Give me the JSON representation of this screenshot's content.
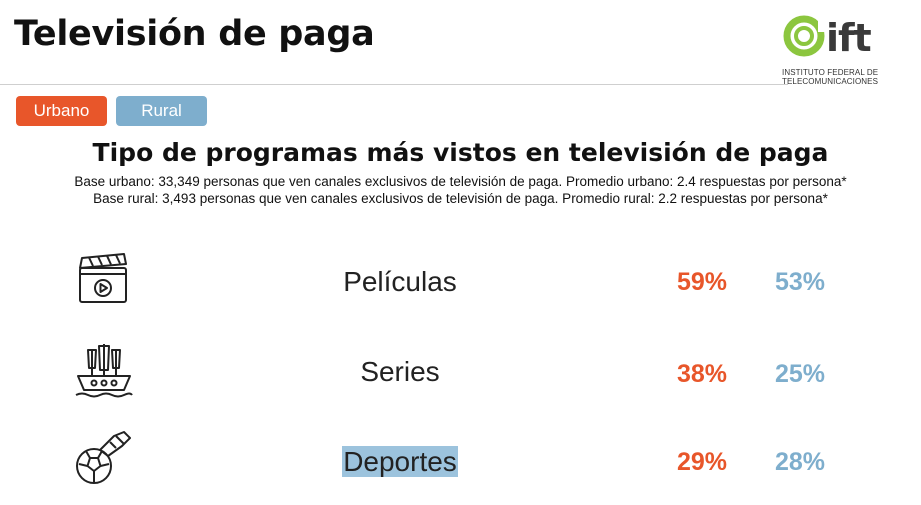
{
  "header": {
    "title": "Televisión de paga",
    "logo_text": "ift",
    "logo_subtitle_line1": "INSTITUTO FEDERAL DE",
    "logo_subtitle_line2": "TELECOMUNICACIONES"
  },
  "filters": {
    "urbano": "Urbano",
    "rural": "Rural"
  },
  "colors": {
    "urbano": "#e8562a",
    "rural": "#7eaecd",
    "logo_green": "#8cc63f"
  },
  "main": {
    "subtitle": "Tipo de programas más vistos en televisión de paga",
    "base_urbano": "Base urbano: 33,349 personas que ven canales exclusivos de televisión de paga. Promedio urbano: 2.4 respuestas por persona*",
    "base_rural": "Base rural: 3,493 personas que ven canales exclusivos de televisión de paga. Promedio rural: 2.2 respuestas por persona*",
    "rows": [
      {
        "icon": "film-clapper-icon",
        "label": "Películas",
        "urbano": "59%",
        "rural": "53%"
      },
      {
        "icon": "ship-icon",
        "label": "Series",
        "urbano": "38%",
        "rural": "25%"
      },
      {
        "icon": "soccer-icon",
        "label": "Deportes",
        "urbano": "29%",
        "rural": "28%"
      }
    ]
  }
}
